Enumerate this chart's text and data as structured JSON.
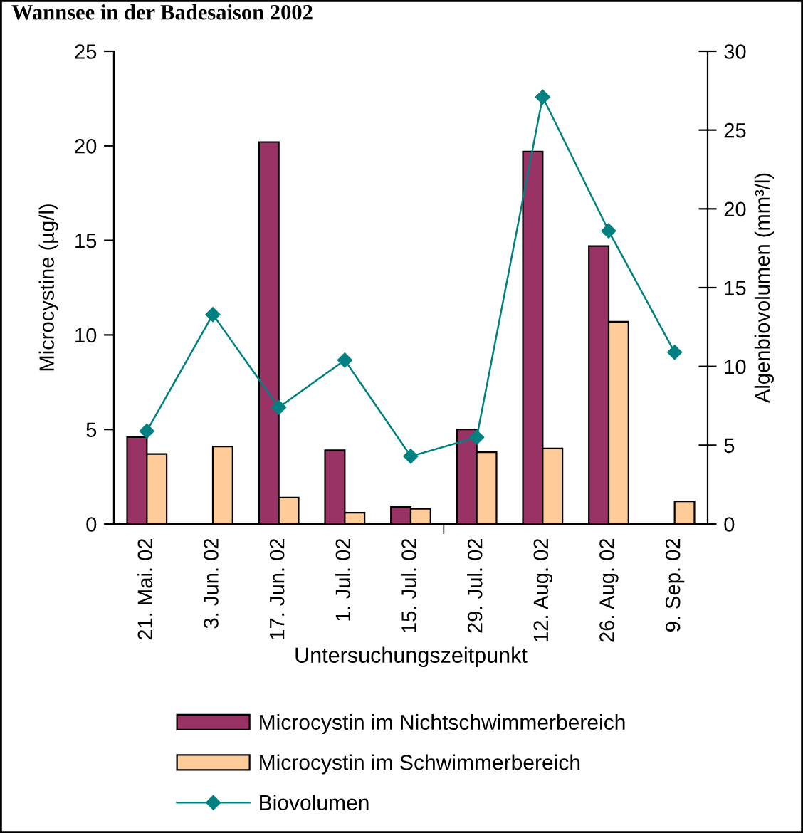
{
  "chart_data": {
    "type": "bar",
    "title": "Wannsee in der Badesaison 2002",
    "xlabel": "Untersuchungszeitpunkt",
    "ylabel": "Microcystine (µg/l)",
    "y2label": "Algenbiovolumen (mm³/l)",
    "categories": [
      "21. Mai. 02",
      "3. Jun. 02",
      "17. Jun. 02",
      "1. Jul. 02",
      "15. Jul. 02",
      "29. Jul. 02",
      "12. Aug. 02",
      "26. Aug. 02",
      "9. Sep. 02"
    ],
    "series": [
      {
        "name": "Microcystin im Nichtschwimmerbereich",
        "color": "#993366",
        "values": [
          4.6,
          null,
          20.2,
          3.9,
          0.9,
          5.0,
          19.7,
          14.7,
          null
        ]
      },
      {
        "name": "Microcystin im Schwimmerbereich",
        "color": "#ffcc99",
        "values": [
          3.7,
          4.1,
          1.4,
          0.6,
          0.8,
          3.8,
          4.0,
          10.7,
          1.2
        ]
      },
      {
        "name": "Biovolumen",
        "type": "line",
        "axis": "y2",
        "color": "#008080",
        "marker": "diamond",
        "line_style": "solid",
        "values": [
          5.9,
          13.3,
          7.4,
          10.4,
          4.3,
          5.5,
          27.1,
          18.6,
          10.9
        ]
      }
    ],
    "ylim": [
      0,
      25
    ],
    "yticks": [
      0,
      5,
      10,
      15,
      20,
      25
    ],
    "y2lim": [
      0,
      30
    ],
    "y2ticks": [
      0,
      5,
      10,
      15,
      20,
      25,
      30
    ],
    "legend": "bottom"
  }
}
